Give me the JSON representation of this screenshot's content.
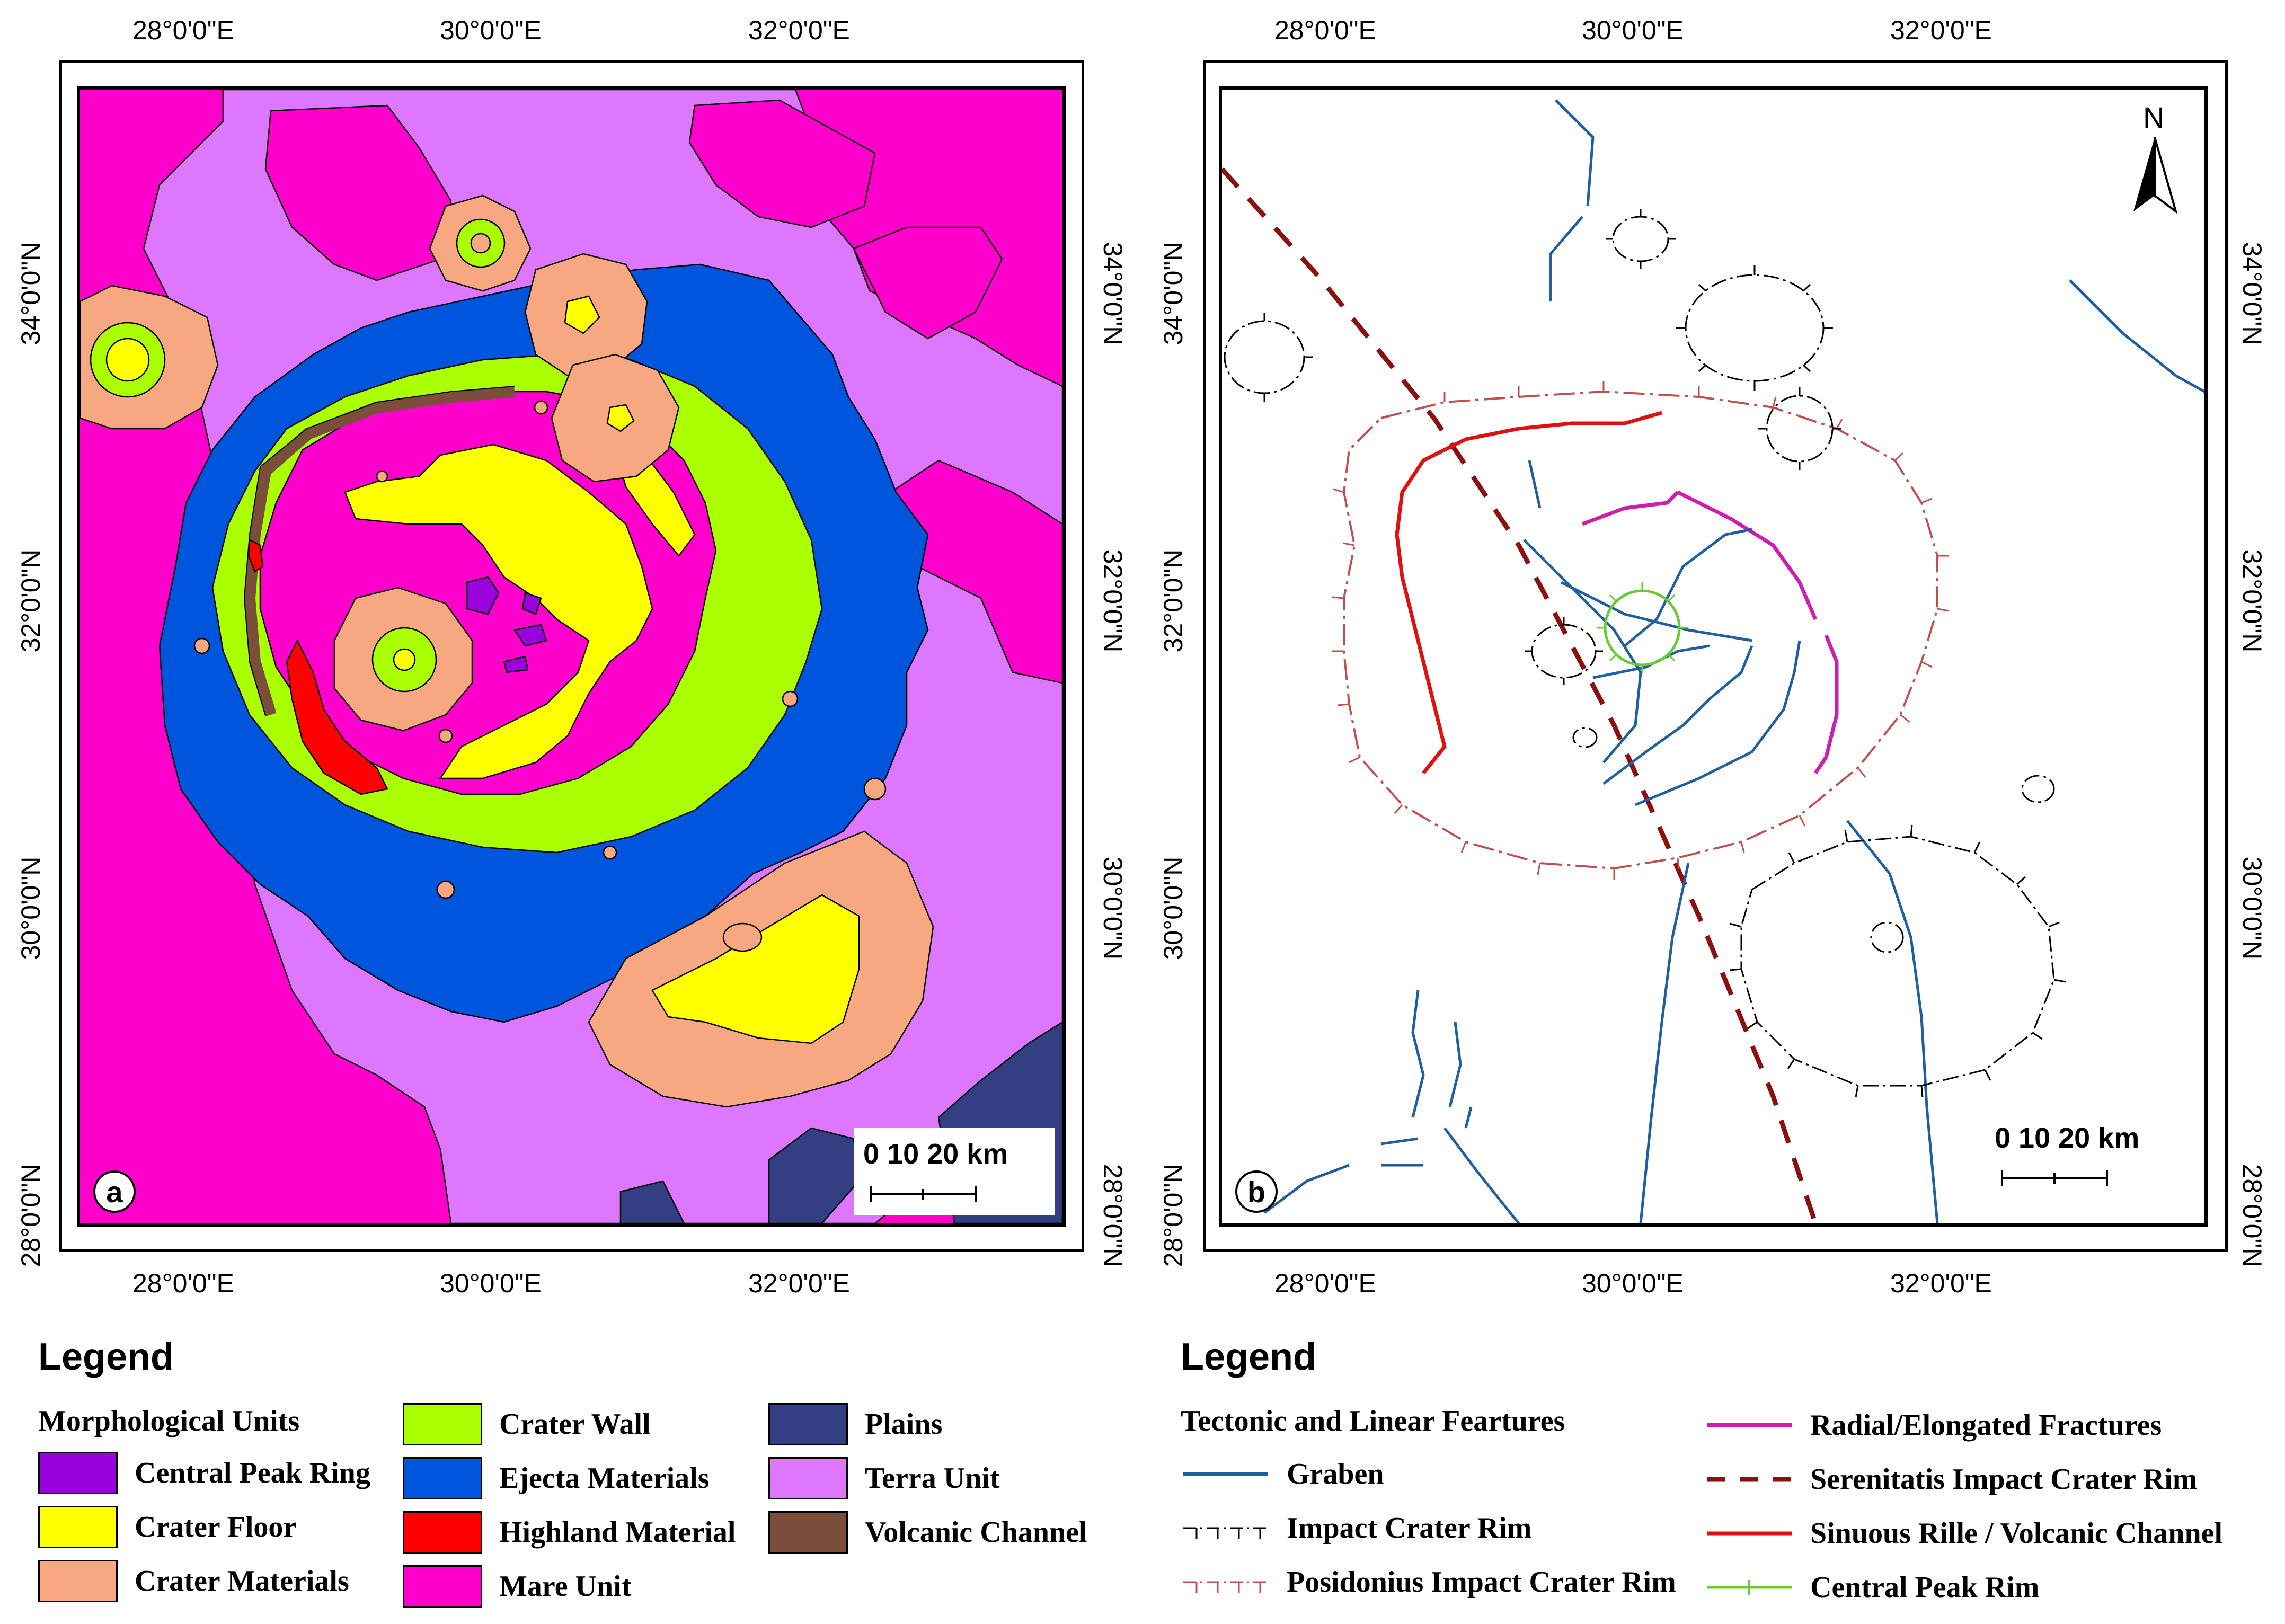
{
  "panel_a": {
    "label": "a",
    "top_lon_labels": [
      "28°0'0\"E",
      "30°0'0\"E",
      "32°0'0\"E"
    ],
    "bottom_lon_labels": [
      "28°0'0\"E",
      "30°0'0\"E",
      "32°0'0\"E"
    ],
    "left_lat_labels": [
      "34°0'0\"N",
      "32°0'0\"N",
      "30°0'0\"N",
      "28°0'0\"N"
    ],
    "right_lat_labels": [
      "34°0'0\"N",
      "32°0'0\"N",
      "30°0'0\"N",
      "28°0'0\"N"
    ],
    "scale_text": "0  10  20 km",
    "colors": {
      "mare": "#ff00cc",
      "terra": "#dd77ff",
      "ejecta": "#0055dd",
      "crater_wall": "#aaff00",
      "crater_floor": "#ffff00",
      "crater_materials": "#f8a880",
      "highland": "#ff0000",
      "volcanic_channel": "#7a4e3a",
      "central_peak_ring": "#9900dd",
      "plains": "#333f82"
    }
  },
  "panel_b": {
    "label": "b",
    "top_lon_labels": [
      "28°0'0\"E",
      "30°0'0\"E",
      "32°0'0\"E"
    ],
    "bottom_lon_labels": [
      "28°0'0\"E",
      "30°0'0\"E",
      "32°0'0\"E"
    ],
    "left_lat_labels": [
      "34°0'0\"N",
      "32°0'0\"N",
      "30°0'0\"N",
      "28°0'0\"N"
    ],
    "right_lat_labels": [
      "34°0'0\"N",
      "32°0'0\"N",
      "30°0'0\"N",
      "28°0'0\"N"
    ],
    "scale_text": "0  10  20 km",
    "north_label": "N",
    "colors": {
      "graben": "#1f5fa0",
      "impact_rim": "#000000",
      "posidonius_rim": "#c0504d",
      "radial": "#cc1eb0",
      "serenitatis": "#8b1010",
      "sinuous_rille": "#e01010",
      "central_peak": "#66cc33"
    }
  },
  "legend_a": {
    "title": "Legend",
    "subtitle": "Morphological Units",
    "items": [
      {
        "label": "Central Peak Ring",
        "color": "#9900dd"
      },
      {
        "label": "Crater Floor",
        "color": "#ffff00"
      },
      {
        "label": "Crater Materials",
        "color": "#f8a880"
      },
      {
        "label": "Crater Wall",
        "color": "#aaff00"
      },
      {
        "label": "Ejecta Materials",
        "color": "#0055dd"
      },
      {
        "label": "Highland Material",
        "color": "#ff0000"
      },
      {
        "label": "Mare Unit",
        "color": "#ff00cc"
      },
      {
        "label": "Plains",
        "color": "#333f82"
      },
      {
        "label": "Terra Unit",
        "color": "#dd77ff"
      },
      {
        "label": "Volcanic Channel",
        "color": "#7a4e3a"
      }
    ]
  },
  "legend_b": {
    "title": "Legend",
    "subtitle": "Tectonic and Linear Feartures",
    "items": [
      {
        "label": "Graben",
        "color": "#1f5fa0",
        "style": "solid"
      },
      {
        "label": "Impact Crater Rim",
        "color": "#000000",
        "style": "dashdot-tick"
      },
      {
        "label": "Posidonius Impact Crater Rim",
        "color": "#c0504d",
        "style": "dashdot-tick"
      },
      {
        "label": "Radial/Elongated Fractures",
        "color": "#cc1eb0",
        "style": "solid"
      },
      {
        "label": "Serenitatis Impact Crater Rim",
        "color": "#8b1010",
        "style": "dashed"
      },
      {
        "label": "Sinuous Rille / Volcanic Channel",
        "color": "#e01010",
        "style": "solid"
      },
      {
        "label": "Central Peak Rim",
        "color": "#66cc33",
        "style": "tick"
      }
    ]
  }
}
